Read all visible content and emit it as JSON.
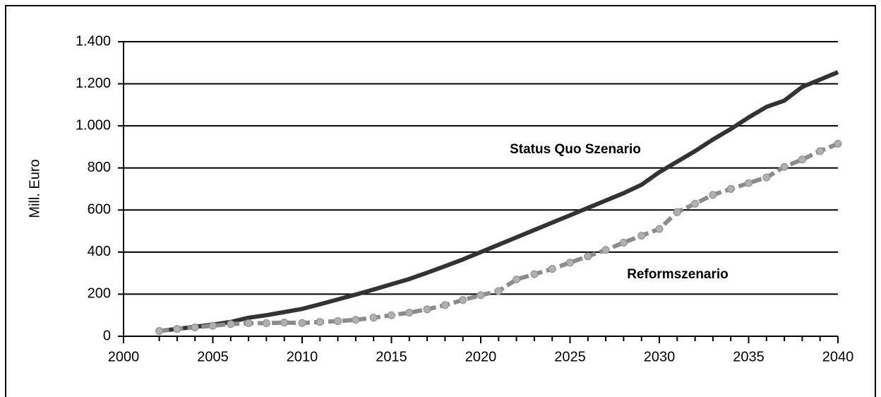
{
  "chart_data": {
    "type": "line",
    "y_label": "Mill. Euro",
    "x": [
      2002,
      2003,
      2004,
      2005,
      2006,
      2007,
      2008,
      2009,
      2010,
      2011,
      2012,
      2013,
      2014,
      2015,
      2016,
      2017,
      2018,
      2019,
      2020,
      2021,
      2022,
      2023,
      2024,
      2025,
      2026,
      2027,
      2028,
      2029,
      2030,
      2031,
      2032,
      2033,
      2034,
      2035,
      2036,
      2037,
      2038,
      2039,
      2040
    ],
    "series": [
      {
        "name": "Status Quo Szenario",
        "color": "#333333",
        "values": [
          25,
          35,
          45,
          55,
          68,
          88,
          100,
          115,
          130,
          152,
          175,
          198,
          222,
          247,
          272,
          302,
          333,
          365,
          400,
          435,
          470,
          505,
          540,
          575,
          610,
          645,
          680,
          720,
          780,
          830,
          880,
          935,
          985,
          1040,
          1090,
          1120,
          1185,
          1220,
          1255
        ]
      },
      {
        "name": "Reformszenario",
        "color": "#8c8c8c",
        "values": [
          25,
          35,
          42,
          50,
          58,
          62,
          62,
          65,
          63,
          68,
          72,
          78,
          88,
          100,
          112,
          128,
          148,
          172,
          195,
          215,
          270,
          295,
          320,
          350,
          380,
          410,
          445,
          478,
          510,
          590,
          630,
          672,
          700,
          728,
          755,
          805,
          840,
          880,
          915
        ]
      }
    ],
    "xlim": [
      2000,
      2040
    ],
    "xticks": [
      2000,
      2005,
      2010,
      2015,
      2020,
      2025,
      2030,
      2035,
      2040
    ],
    "ylim": [
      0,
      1400
    ],
    "yticks": [
      0,
      200,
      400,
      600,
      800,
      {
        "value": 1000,
        "label": "1.000"
      },
      {
        "value": 1200,
        "label": "1.200"
      },
      {
        "value": 1400,
        "label": "1.400"
      }
    ],
    "grid": true
  }
}
